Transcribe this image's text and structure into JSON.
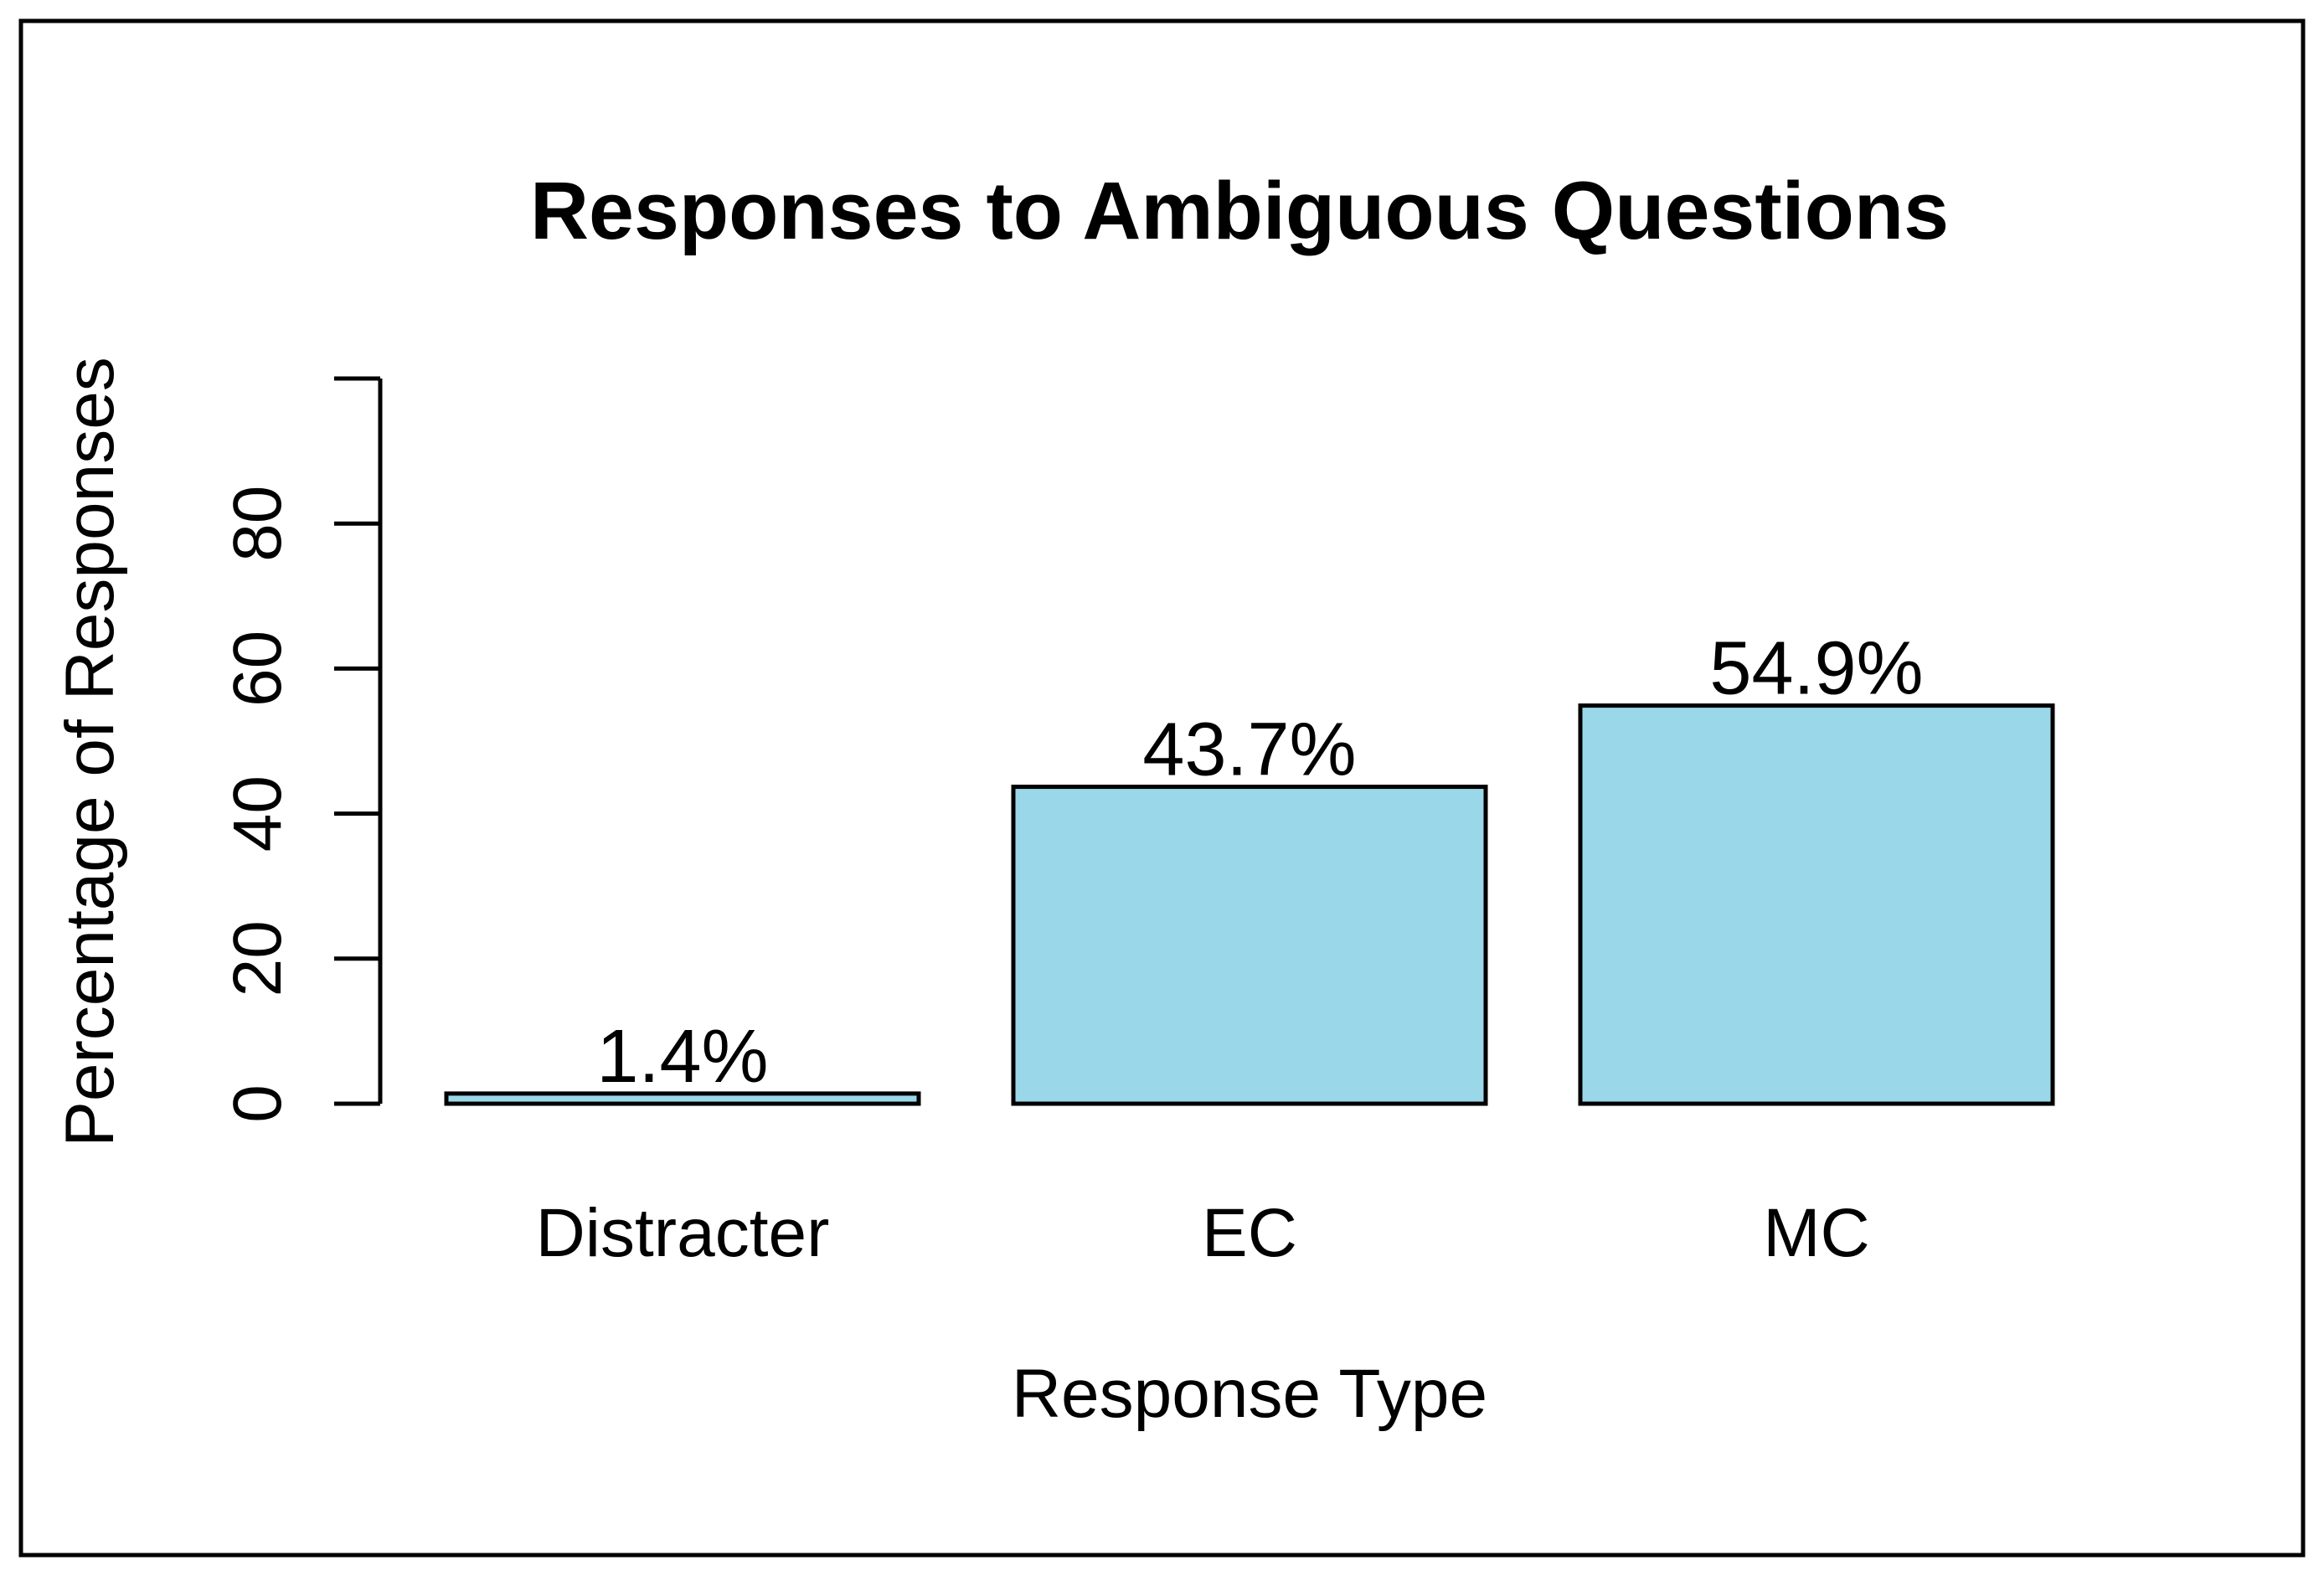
{
  "chart_data": {
    "type": "bar",
    "title": "Responses to Ambiguous Questions",
    "xlabel": "Response Type",
    "ylabel": "Percentage of Responses",
    "categories": [
      "Distracter",
      "EC",
      "MC"
    ],
    "values": [
      1.4,
      43.7,
      54.9
    ],
    "value_labels": [
      "1.4%",
      "43.7%",
      "54.9%"
    ],
    "ylim": [
      0,
      100
    ],
    "ytick_positions": [
      0,
      20,
      40,
      60,
      80,
      100
    ],
    "ytick_labels": [
      "0",
      "20",
      "40",
      "60",
      "80",
      ""
    ],
    "grid": false,
    "legend_position": "none",
    "bar_fill": "#9AD7E9",
    "bar_stroke": "#000000",
    "text_color": "#000000",
    "background": "#FFFFFF",
    "border_color": "#000000"
  }
}
